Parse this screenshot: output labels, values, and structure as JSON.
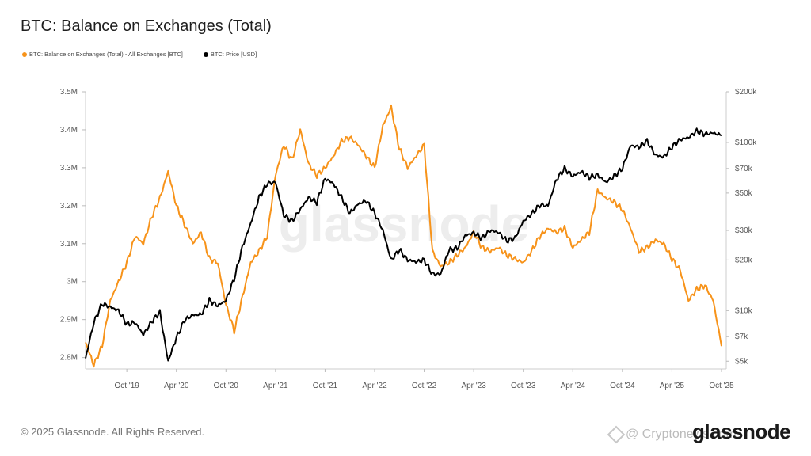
{
  "title": "BTC: Balance on Exchanges (Total)",
  "footer": {
    "copyright": "© 2025 Glassnode. All Rights Reserved.",
    "brand": "glassnode",
    "badge": "@ Cryptonews.com"
  },
  "watermark": "glassnode",
  "colors": {
    "balance": "#F7931A",
    "price": "#000000",
    "axis": "#cccccc"
  },
  "chart_data": {
    "type": "line",
    "title": "BTC: Balance on Exchanges (Total)",
    "legend_placement": "top-left",
    "grid": false,
    "x_ticks": [
      "Oct '19",
      "Apr '20",
      "Oct '20",
      "Apr '21",
      "Oct '21",
      "Apr '22",
      "Oct '22",
      "Apr '23",
      "Oct '23",
      "Apr '24",
      "Oct '24",
      "Apr '25",
      "Oct '25"
    ],
    "x_range": [
      "2019-05",
      "2025-10"
    ],
    "y_left": {
      "ticks": [
        "3.5M",
        "3.4M",
        "3.3M",
        "3.2M",
        "3.1M",
        "3M",
        "2.9M",
        "2.8M"
      ],
      "range": [
        2.77,
        3.5
      ],
      "unit": "M BTC"
    },
    "y_right": {
      "scale": "log",
      "ticks": [
        "$200k",
        "$100k",
        "$70k",
        "$50k",
        "$30k",
        "$20k",
        "$10k",
        "$7k",
        "$5k"
      ],
      "tick_values": [
        200000,
        100000,
        70000,
        50000,
        30000,
        20000,
        10000,
        7000,
        5000
      ],
      "range": [
        4500,
        200000
      ]
    },
    "series": [
      {
        "name": "BTC: Balance on Exchanges (Total) - All Exchanges [BTC]",
        "axis": "left",
        "color": "#F7931A",
        "points": [
          [
            "2019-05",
            2.84
          ],
          [
            "2019-06",
            2.78
          ],
          [
            "2019-07",
            2.83
          ],
          [
            "2019-08",
            2.95
          ],
          [
            "2019-09",
            3.0
          ],
          [
            "2019-10",
            3.05
          ],
          [
            "2019-11",
            3.12
          ],
          [
            "2019-12",
            3.1
          ],
          [
            "2020-01",
            3.17
          ],
          [
            "2020-02",
            3.22
          ],
          [
            "2020-03",
            3.29
          ],
          [
            "2020-04",
            3.2
          ],
          [
            "2020-05",
            3.15
          ],
          [
            "2020-06",
            3.1
          ],
          [
            "2020-07",
            3.13
          ],
          [
            "2020-08",
            3.06
          ],
          [
            "2020-09",
            3.05
          ],
          [
            "2020-10",
            2.94
          ],
          [
            "2020-11",
            2.87
          ],
          [
            "2020-12",
            2.96
          ],
          [
            "2021-01",
            3.05
          ],
          [
            "2021-02",
            3.08
          ],
          [
            "2021-03",
            3.12
          ],
          [
            "2021-04",
            3.28
          ],
          [
            "2021-05",
            3.36
          ],
          [
            "2021-06",
            3.32
          ],
          [
            "2021-07",
            3.4
          ],
          [
            "2021-08",
            3.31
          ],
          [
            "2021-09",
            3.28
          ],
          [
            "2021-10",
            3.3
          ],
          [
            "2021-11",
            3.33
          ],
          [
            "2021-12",
            3.37
          ],
          [
            "2022-01",
            3.38
          ],
          [
            "2022-02",
            3.36
          ],
          [
            "2022-03",
            3.33
          ],
          [
            "2022-04",
            3.3
          ],
          [
            "2022-05",
            3.41
          ],
          [
            "2022-06",
            3.46
          ],
          [
            "2022-07",
            3.35
          ],
          [
            "2022-08",
            3.3
          ],
          [
            "2022-09",
            3.33
          ],
          [
            "2022-10",
            3.36
          ],
          [
            "2022-11",
            3.08
          ],
          [
            "2022-12",
            3.04
          ],
          [
            "2023-01",
            3.05
          ],
          [
            "2023-02",
            3.07
          ],
          [
            "2023-03",
            3.09
          ],
          [
            "2023-04",
            3.13
          ],
          [
            "2023-05",
            3.09
          ],
          [
            "2023-06",
            3.08
          ],
          [
            "2023-07",
            3.09
          ],
          [
            "2023-08",
            3.07
          ],
          [
            "2023-09",
            3.06
          ],
          [
            "2023-10",
            3.05
          ],
          [
            "2023-11",
            3.08
          ],
          [
            "2023-12",
            3.12
          ],
          [
            "2024-01",
            3.14
          ],
          [
            "2024-02",
            3.13
          ],
          [
            "2024-03",
            3.14
          ],
          [
            "2024-04",
            3.09
          ],
          [
            "2024-05",
            3.11
          ],
          [
            "2024-06",
            3.13
          ],
          [
            "2024-07",
            3.24
          ],
          [
            "2024-08",
            3.22
          ],
          [
            "2024-09",
            3.21
          ],
          [
            "2024-10",
            3.19
          ],
          [
            "2024-11",
            3.14
          ],
          [
            "2024-12",
            3.08
          ],
          [
            "2025-01",
            3.09
          ],
          [
            "2025-02",
            3.11
          ],
          [
            "2025-03",
            3.1
          ],
          [
            "2025-04",
            3.06
          ],
          [
            "2025-05",
            3.03
          ],
          [
            "2025-06",
            2.95
          ],
          [
            "2025-07",
            2.98
          ],
          [
            "2025-08",
            2.99
          ],
          [
            "2025-09",
            2.95
          ],
          [
            "2025-10",
            2.83
          ]
        ]
      },
      {
        "name": "BTC: Price [USD]",
        "axis": "right",
        "color": "#000000",
        "points": [
          [
            "2019-05",
            5200
          ],
          [
            "2019-06",
            8500
          ],
          [
            "2019-07",
            11000
          ],
          [
            "2019-08",
            10500
          ],
          [
            "2019-09",
            10000
          ],
          [
            "2019-10",
            8300
          ],
          [
            "2019-11",
            8500
          ],
          [
            "2019-12",
            7200
          ],
          [
            "2020-01",
            8600
          ],
          [
            "2020-02",
            9800
          ],
          [
            "2020-03",
            5000
          ],
          [
            "2020-04",
            6900
          ],
          [
            "2020-05",
            8800
          ],
          [
            "2020-06",
            9400
          ],
          [
            "2020-07",
            9500
          ],
          [
            "2020-08",
            11500
          ],
          [
            "2020-09",
            10700
          ],
          [
            "2020-10",
            11500
          ],
          [
            "2020-11",
            15500
          ],
          [
            "2020-12",
            24000
          ],
          [
            "2021-01",
            33000
          ],
          [
            "2021-02",
            47000
          ],
          [
            "2021-03",
            57000
          ],
          [
            "2021-04",
            58000
          ],
          [
            "2021-05",
            37000
          ],
          [
            "2021-06",
            34000
          ],
          [
            "2021-07",
            40000
          ],
          [
            "2021-08",
            47000
          ],
          [
            "2021-09",
            44000
          ],
          [
            "2021-10",
            61000
          ],
          [
            "2021-11",
            57000
          ],
          [
            "2021-12",
            47000
          ],
          [
            "2022-01",
            38000
          ],
          [
            "2022-02",
            43000
          ],
          [
            "2022-03",
            45000
          ],
          [
            "2022-04",
            38000
          ],
          [
            "2022-05",
            30000
          ],
          [
            "2022-06",
            20000
          ],
          [
            "2022-07",
            23000
          ],
          [
            "2022-08",
            20000
          ],
          [
            "2022-09",
            19500
          ],
          [
            "2022-10",
            20000
          ],
          [
            "2022-11",
            16500
          ],
          [
            "2022-12",
            16500
          ],
          [
            "2023-01",
            23000
          ],
          [
            "2023-02",
            23500
          ],
          [
            "2023-03",
            28000
          ],
          [
            "2023-04",
            29000
          ],
          [
            "2023-05",
            27000
          ],
          [
            "2023-06",
            30000
          ],
          [
            "2023-07",
            29200
          ],
          [
            "2023-08",
            26000
          ],
          [
            "2023-09",
            27000
          ],
          [
            "2023-10",
            34000
          ],
          [
            "2023-11",
            37500
          ],
          [
            "2023-12",
            42500
          ],
          [
            "2024-01",
            42000
          ],
          [
            "2024-02",
            60000
          ],
          [
            "2024-03",
            70000
          ],
          [
            "2024-04",
            63000
          ],
          [
            "2024-05",
            67000
          ],
          [
            "2024-06",
            62000
          ],
          [
            "2024-07",
            64000
          ],
          [
            "2024-08",
            58000
          ],
          [
            "2024-09",
            63000
          ],
          [
            "2024-10",
            70000
          ],
          [
            "2024-11",
            96000
          ],
          [
            "2024-12",
            94000
          ],
          [
            "2025-01",
            102000
          ],
          [
            "2025-02",
            84000
          ],
          [
            "2025-03",
            82000
          ],
          [
            "2025-04",
            94000
          ],
          [
            "2025-05",
            104000
          ],
          [
            "2025-06",
            107000
          ],
          [
            "2025-07",
            117000
          ],
          [
            "2025-08",
            112000
          ],
          [
            "2025-09",
            114000
          ],
          [
            "2025-10",
            110000
          ]
        ]
      }
    ]
  }
}
